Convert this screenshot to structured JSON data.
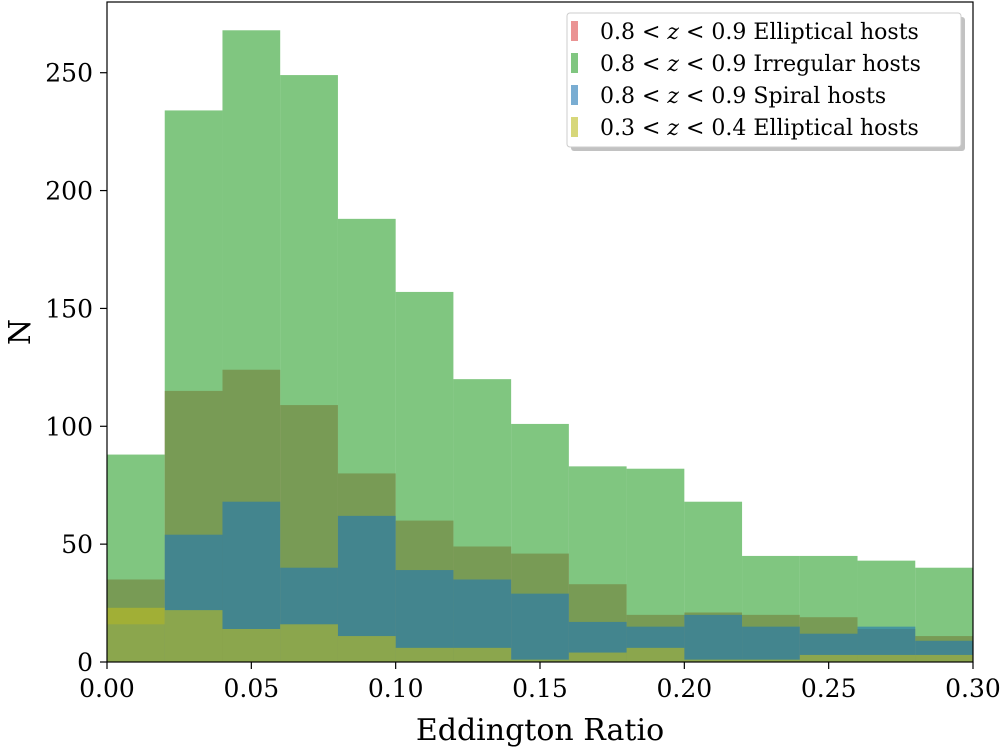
{
  "chart_data": {
    "type": "histogram",
    "title": "",
    "xlabel": "Eddington Ratio",
    "ylabel": "N",
    "xlim": [
      0.0,
      0.3
    ],
    "ylim": [
      0,
      280
    ],
    "grid": false,
    "legend_position": "top-right",
    "bin_edges": [
      0.0,
      0.02,
      0.04,
      0.06,
      0.08,
      0.1,
      0.12,
      0.14,
      0.16,
      0.18,
      0.2,
      0.22,
      0.24,
      0.26,
      0.28,
      0.3
    ],
    "x_ticks": [
      0.0,
      0.05,
      0.1,
      0.15,
      0.2,
      0.25,
      0.3
    ],
    "x_tick_labels": [
      "0.00",
      "0.05",
      "0.10",
      "0.15",
      "0.20",
      "0.25",
      "0.30"
    ],
    "y_ticks": [
      0,
      50,
      100,
      150,
      200,
      250
    ],
    "y_tick_labels": [
      "0",
      "50",
      "100",
      "150",
      "200",
      "250"
    ],
    "series": [
      {
        "name": "Elliptical 0.8-0.9",
        "legend_prefix": "0.8 <",
        "legend_var": "z",
        "legend_suffix": "< 0.9 Elliptical hosts",
        "color": "#d62728",
        "opacity": 0.5,
        "counts": [
          35,
          115,
          124,
          109,
          80,
          60,
          49,
          46,
          33,
          20,
          21,
          20,
          19,
          14,
          11
        ]
      },
      {
        "name": "Irregular 0.8-0.9",
        "legend_prefix": "0.8 <",
        "legend_var": "z",
        "legend_suffix": "< 0.9 Irregular hosts",
        "color": "#2ca02c",
        "opacity": 0.6,
        "counts": [
          88,
          234,
          268,
          249,
          188,
          157,
          120,
          101,
          83,
          82,
          68,
          45,
          45,
          43,
          40
        ]
      },
      {
        "name": "Spiral 0.8-0.9",
        "legend_prefix": "0.8 <",
        "legend_var": "z",
        "legend_suffix": "< 0.9 Spiral hosts",
        "color": "#1f77b4",
        "opacity": 0.6,
        "counts": [
          16,
          54,
          68,
          40,
          62,
          39,
          35,
          29,
          17,
          15,
          20,
          15,
          12,
          15,
          9
        ]
      },
      {
        "name": "Elliptical 0.3-0.4",
        "legend_prefix": "0.3 <",
        "legend_var": "z",
        "legend_suffix": "< 0.4 Elliptical hosts",
        "color": "#bcbd22",
        "opacity": 0.6,
        "counts": [
          23,
          22,
          14,
          16,
          11,
          6,
          6,
          1,
          4,
          6,
          1,
          1,
          3,
          3,
          3
        ]
      }
    ]
  }
}
